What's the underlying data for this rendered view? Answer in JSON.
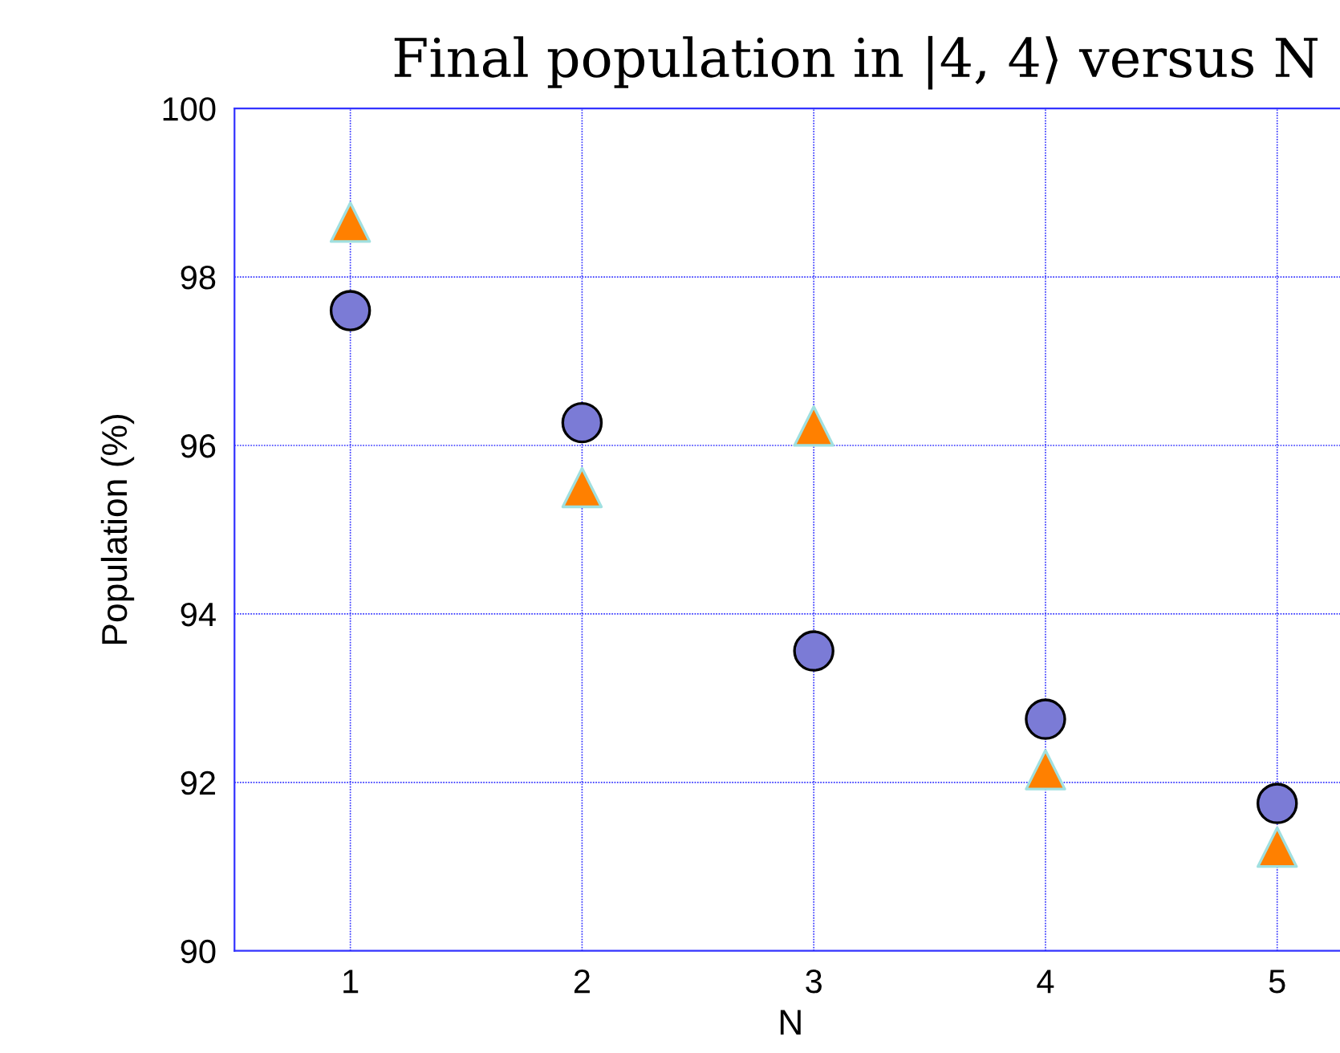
{
  "chart_data": {
    "type": "scatter",
    "title": "Final population in |4, 4⟩ versus N",
    "xlabel": "N",
    "ylabel": "Population (%)",
    "x": [
      1,
      2,
      3,
      4,
      5
    ],
    "series": [
      {
        "color": "#7b7bd6",
        "marker": "circle",
        "values": [
          97.6,
          96.27,
          93.56,
          92.75,
          91.75
        ]
      },
      {
        "color": "#ff8000",
        "marker": "triangle",
        "values": [
          98.65,
          95.5,
          96.23,
          92.15,
          91.23
        ]
      }
    ],
    "xlim": [
      0.5,
      5.3
    ],
    "ylim": [
      90,
      100
    ],
    "xticks": [
      1,
      2,
      3,
      4,
      5
    ],
    "yticks": [
      90,
      92,
      94,
      96,
      98,
      100
    ],
    "grid": true,
    "legend": false
  }
}
